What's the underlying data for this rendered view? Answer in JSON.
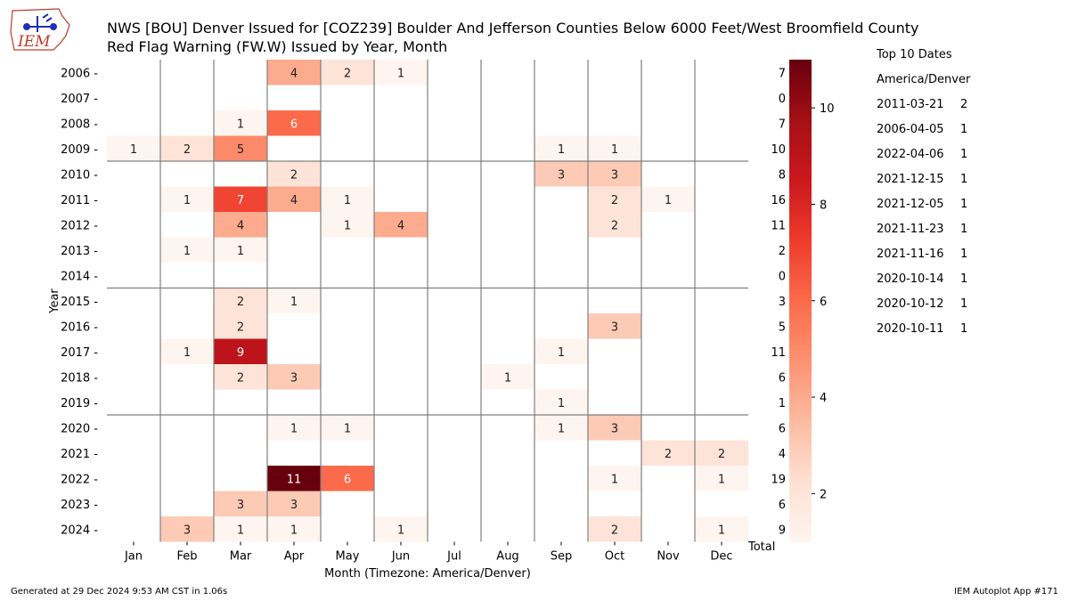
{
  "header": {
    "title_line1": "NWS [BOU] Denver Issued for [COZ239] Boulder And Jefferson Counties Below 6000 Feet/West Broomfield County",
    "title_line2": "Red Flag Warning (FW.W) Issued by Year, Month",
    "logo_text": "IEM"
  },
  "chart_data": {
    "type": "heatmap",
    "xlabel": "Month (Timezone: America/Denver)",
    "ylabel": "Year",
    "x_categories": [
      "Jan",
      "Feb",
      "Mar",
      "Apr",
      "May",
      "Jun",
      "Jul",
      "Aug",
      "Sep",
      "Oct",
      "Nov",
      "Dec"
    ],
    "total_label": "Total",
    "y_categories": [
      2006,
      2007,
      2008,
      2009,
      2010,
      2011,
      2012,
      2013,
      2014,
      2015,
      2016,
      2017,
      2018,
      2019,
      2020,
      2021,
      2022,
      2023,
      2024
    ],
    "values": [
      [
        null,
        null,
        null,
        4,
        2,
        1,
        null,
        null,
        null,
        null,
        null,
        null
      ],
      [
        null,
        null,
        null,
        null,
        null,
        null,
        null,
        null,
        null,
        null,
        null,
        null
      ],
      [
        null,
        null,
        1,
        6,
        null,
        null,
        null,
        null,
        null,
        null,
        null,
        null
      ],
      [
        1,
        2,
        5,
        null,
        null,
        null,
        null,
        null,
        1,
        1,
        null,
        null
      ],
      [
        null,
        null,
        null,
        2,
        null,
        null,
        null,
        null,
        3,
        3,
        null,
        null
      ],
      [
        null,
        1,
        7,
        4,
        1,
        null,
        null,
        null,
        null,
        2,
        1,
        null
      ],
      [
        null,
        null,
        4,
        null,
        1,
        4,
        null,
        null,
        null,
        2,
        null,
        null
      ],
      [
        null,
        1,
        1,
        null,
        null,
        null,
        null,
        null,
        null,
        null,
        null,
        null
      ],
      [
        null,
        null,
        null,
        null,
        null,
        null,
        null,
        null,
        null,
        null,
        null,
        null
      ],
      [
        null,
        null,
        2,
        1,
        null,
        null,
        null,
        null,
        null,
        null,
        null,
        null
      ],
      [
        null,
        null,
        2,
        null,
        null,
        null,
        null,
        null,
        null,
        3,
        null,
        null
      ],
      [
        null,
        1,
        9,
        null,
        null,
        null,
        null,
        null,
        1,
        null,
        null,
        null
      ],
      [
        null,
        null,
        2,
        3,
        null,
        null,
        null,
        1,
        null,
        null,
        null,
        null
      ],
      [
        null,
        null,
        null,
        null,
        null,
        null,
        null,
        null,
        1,
        null,
        null,
        null
      ],
      [
        null,
        null,
        null,
        1,
        1,
        null,
        null,
        null,
        1,
        3,
        null,
        null
      ],
      [
        null,
        null,
        null,
        null,
        null,
        null,
        null,
        null,
        null,
        null,
        2,
        2
      ],
      [
        null,
        null,
        null,
        11,
        6,
        null,
        null,
        null,
        null,
        1,
        null,
        1
      ],
      [
        null,
        null,
        3,
        3,
        null,
        null,
        null,
        null,
        null,
        null,
        null,
        null
      ],
      [
        null,
        3,
        1,
        1,
        null,
        1,
        null,
        null,
        null,
        2,
        null,
        1
      ]
    ],
    "row_totals": [
      7,
      0,
      7,
      10,
      8,
      16,
      11,
      2,
      0,
      3,
      5,
      11,
      6,
      1,
      6,
      4,
      19,
      6,
      9
    ],
    "colorbar": {
      "range": [
        1,
        11
      ],
      "ticks": [
        2,
        4,
        6,
        8,
        10
      ],
      "colormap": "Reds"
    },
    "separator_after_years": [
      2009,
      2014,
      2019
    ],
    "grid": "vertical lines between months, horizontal lines every 5 years"
  },
  "top10": {
    "title": "Top 10 Dates",
    "timezone": "America/Denver",
    "items": [
      {
        "date": "2011-03-21",
        "count": "2"
      },
      {
        "date": "2006-04-05",
        "count": "1"
      },
      {
        "date": "2022-04-06",
        "count": "1"
      },
      {
        "date": "2021-12-15",
        "count": "1"
      },
      {
        "date": "2021-12-05",
        "count": "1"
      },
      {
        "date": "2021-11-23",
        "count": "1"
      },
      {
        "date": "2021-11-16",
        "count": "1"
      },
      {
        "date": "2020-10-14",
        "count": "1"
      },
      {
        "date": "2020-10-12",
        "count": "1"
      },
      {
        "date": "2020-10-11",
        "count": "1"
      }
    ]
  },
  "footer": {
    "generated": "Generated at 29 Dec 2024 9:53 AM CST in 1.06s",
    "app": "IEM Autoplot App #171"
  }
}
